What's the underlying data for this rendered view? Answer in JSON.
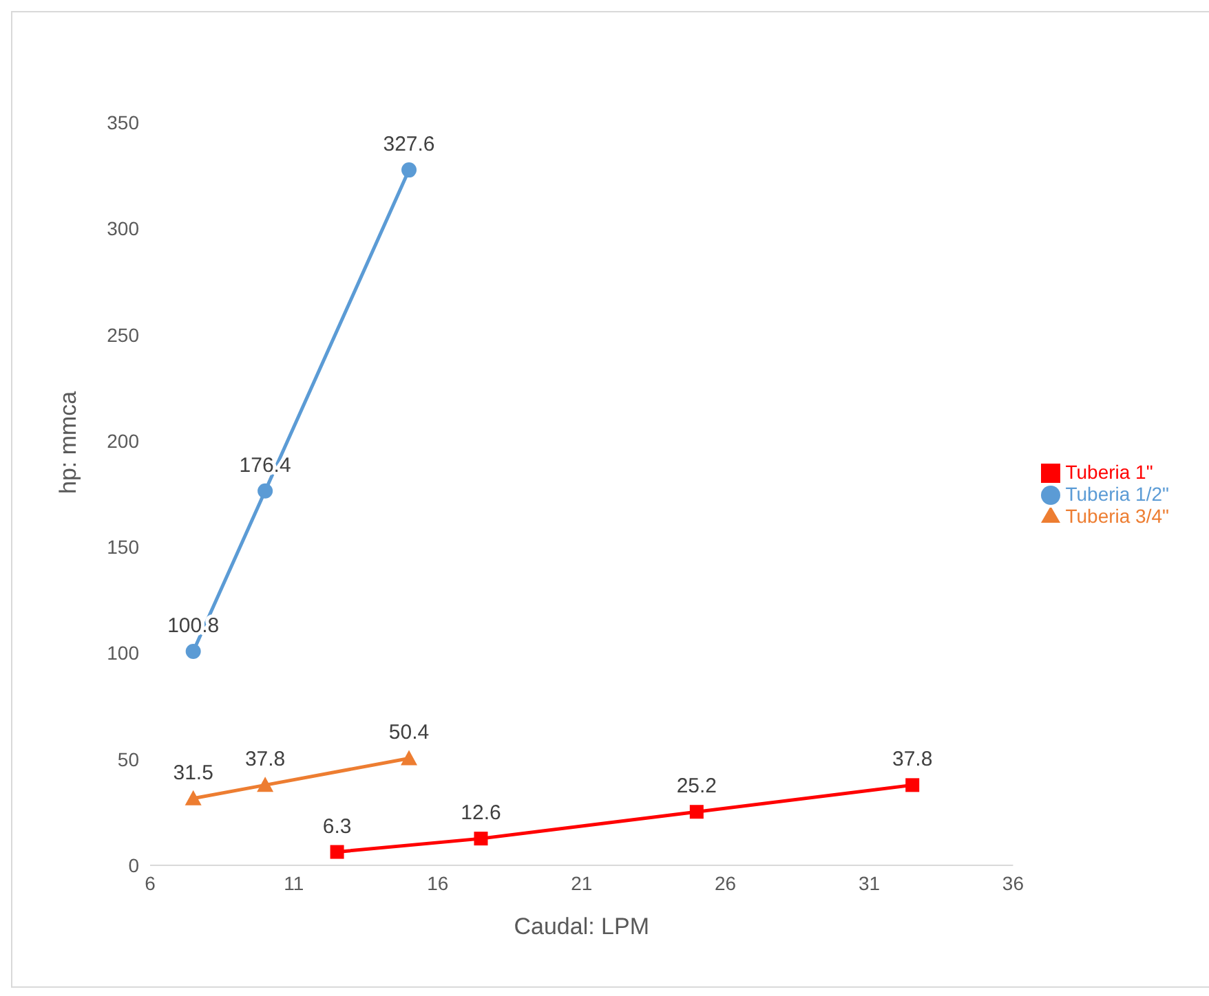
{
  "chart_data": {
    "type": "line",
    "xlabel": "Caudal: LPM",
    "ylabel": "hp: mmca",
    "series": [
      {
        "name": "Tuberia 1\"",
        "color": "#ff0000",
        "marker": "square",
        "x": [
          12.5,
          17.5,
          25,
          32.5
        ],
        "values": [
          6.3,
          12.6,
          25.2,
          37.8
        ]
      },
      {
        "name": "Tuberia 3/4\"",
        "color": "#ed7d31",
        "marker": "triangle",
        "x": [
          7.5,
          10,
          15
        ],
        "values": [
          31.5,
          37.8,
          50.4
        ]
      },
      {
        "name": "Tuberia 1/2\"",
        "color": "#5b9bd5",
        "marker": "circle",
        "x": [
          7.5,
          10,
          15
        ],
        "values": [
          100.8,
          176.4,
          327.6
        ]
      }
    ],
    "xlim": [
      6,
      36
    ],
    "xticks": [
      6,
      11,
      16,
      21,
      26,
      31,
      36
    ],
    "ylim": [
      0,
      350
    ],
    "yticks": [
      0,
      50,
      100,
      150,
      200,
      250,
      300,
      350
    ],
    "data_labels": true,
    "legend": "right",
    "grid": false
  }
}
